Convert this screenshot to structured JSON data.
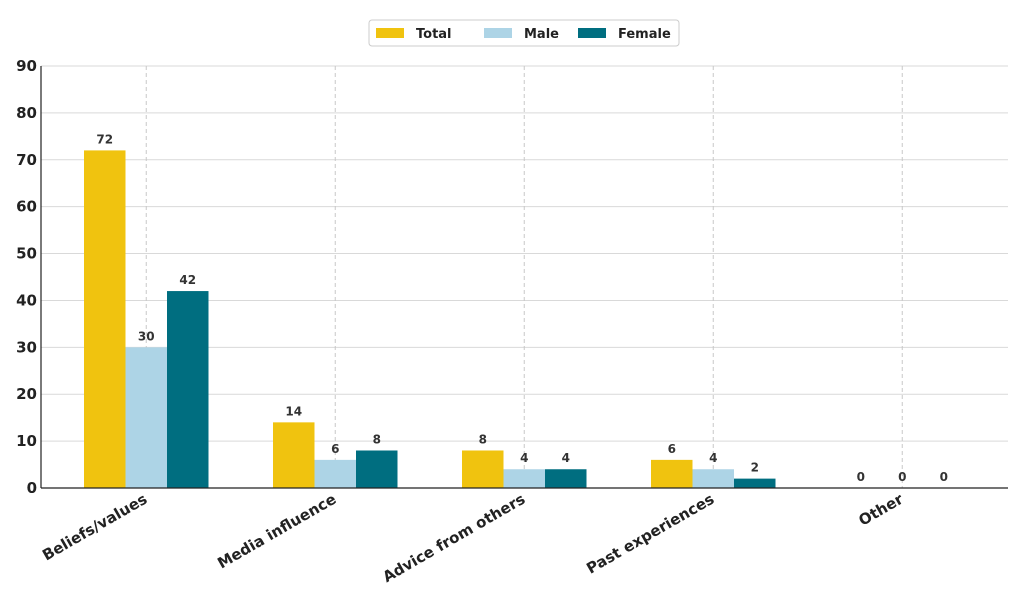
{
  "chart_data": {
    "type": "bar",
    "categories": [
      "Beliefs/values",
      "Media influence",
      "Advice from others",
      "Past experiences",
      "Other"
    ],
    "series": [
      {
        "name": "Total",
        "color": "#F0C30F",
        "values": [
          72,
          14,
          8,
          6,
          0
        ]
      },
      {
        "name": "Male",
        "color": "#ADD4E6",
        "values": [
          30,
          6,
          4,
          4,
          0
        ]
      },
      {
        "name": "Female",
        "color": "#006E80",
        "values": [
          42,
          8,
          4,
          2,
          0
        ]
      }
    ],
    "ylim": [
      0,
      90
    ],
    "yticks": [
      0,
      10,
      20,
      30,
      40,
      50,
      60,
      70,
      80,
      90
    ],
    "grid": true,
    "legend_position": "top-center",
    "data_labels": true
  }
}
